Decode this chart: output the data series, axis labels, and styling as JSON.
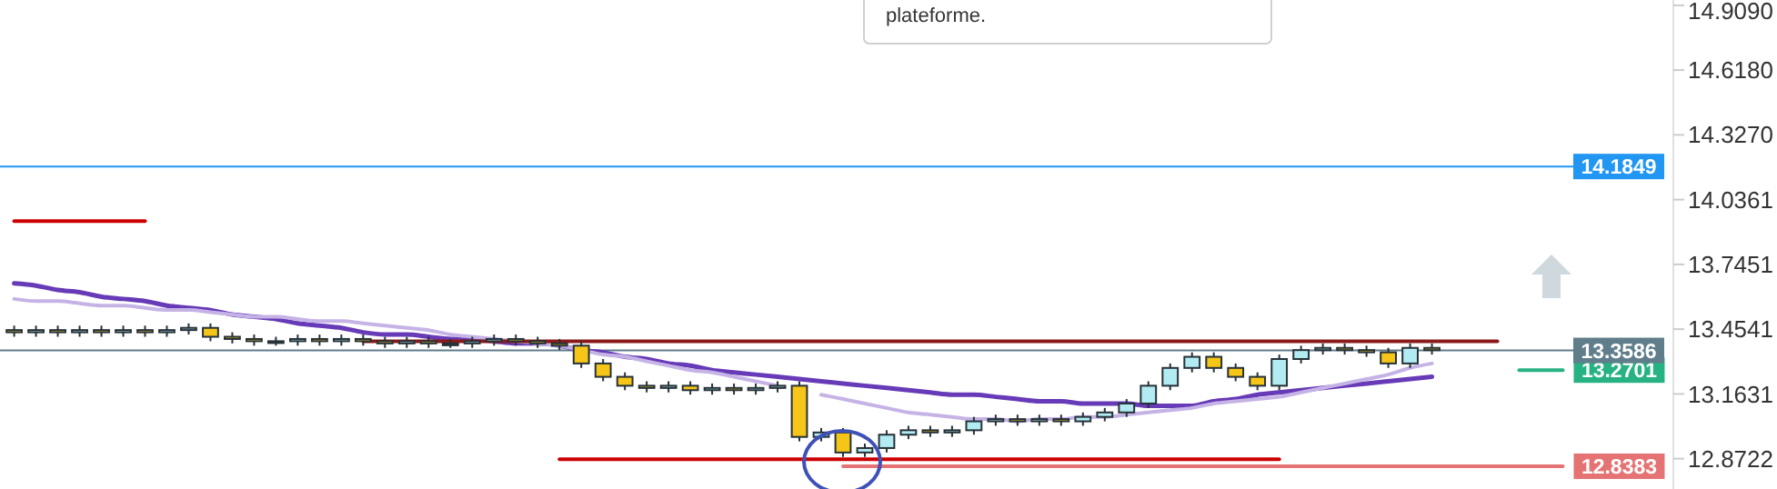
{
  "chart_data": {
    "type": "candlestick",
    "categories": [
      null,
      null,
      null,
      null,
      null,
      null,
      null,
      null,
      null,
      null,
      null,
      null,
      null,
      null,
      null,
      null,
      null,
      null,
      null,
      null,
      null,
      null,
      null,
      null,
      null,
      null,
      null,
      null,
      null,
      null,
      null,
      null,
      null,
      null,
      null,
      null,
      null,
      null,
      null,
      null,
      null,
      null,
      null,
      null,
      null,
      null,
      null,
      null,
      null,
      null,
      null,
      null,
      null,
      null,
      null,
      null,
      null,
      null,
      null,
      null,
      null,
      null,
      null,
      null,
      null,
      null,
      null,
      null,
      null,
      null,
      null,
      null,
      null,
      null,
      null,
      null
    ],
    "ohlc": [
      [
        13.45,
        13.47,
        13.42,
        13.44
      ],
      [
        13.44,
        13.47,
        13.42,
        13.45
      ],
      [
        13.45,
        13.47,
        13.42,
        13.44
      ],
      [
        13.44,
        13.47,
        13.42,
        13.45
      ],
      [
        13.45,
        13.47,
        13.42,
        13.44
      ],
      [
        13.44,
        13.47,
        13.42,
        13.45
      ],
      [
        13.45,
        13.47,
        13.42,
        13.44
      ],
      [
        13.44,
        13.47,
        13.42,
        13.45
      ],
      [
        13.45,
        13.48,
        13.43,
        13.46
      ],
      [
        13.46,
        13.48,
        13.4,
        13.42
      ],
      [
        13.42,
        13.44,
        13.39,
        13.41
      ],
      [
        13.41,
        13.43,
        13.38,
        13.4
      ],
      [
        13.4,
        13.42,
        13.38,
        13.4
      ],
      [
        13.4,
        13.43,
        13.38,
        13.41
      ],
      [
        13.41,
        13.43,
        13.38,
        13.4
      ],
      [
        13.4,
        13.43,
        13.38,
        13.41
      ],
      [
        13.41,
        13.43,
        13.38,
        13.4
      ],
      [
        13.4,
        13.42,
        13.37,
        13.39
      ],
      [
        13.39,
        13.42,
        13.37,
        13.4
      ],
      [
        13.4,
        13.42,
        13.37,
        13.39
      ],
      [
        13.39,
        13.41,
        13.37,
        13.39
      ],
      [
        13.39,
        13.42,
        13.37,
        13.4
      ],
      [
        13.4,
        13.43,
        13.38,
        13.41
      ],
      [
        13.41,
        13.43,
        13.38,
        13.4
      ],
      [
        13.4,
        13.42,
        13.37,
        13.39
      ],
      [
        13.39,
        13.41,
        13.36,
        13.38
      ],
      [
        13.38,
        13.4,
        13.28,
        13.3
      ],
      [
        13.3,
        13.32,
        13.22,
        13.24
      ],
      [
        13.24,
        13.26,
        13.18,
        13.2
      ],
      [
        13.2,
        13.22,
        13.17,
        13.19
      ],
      [
        13.19,
        13.22,
        13.17,
        13.2
      ],
      [
        13.2,
        13.22,
        13.16,
        13.18
      ],
      [
        13.18,
        13.21,
        13.16,
        13.19
      ],
      [
        13.19,
        13.21,
        13.16,
        13.18
      ],
      [
        13.18,
        13.21,
        13.16,
        13.19
      ],
      [
        13.19,
        13.22,
        13.17,
        13.2
      ],
      [
        13.2,
        13.22,
        12.95,
        12.97
      ],
      [
        12.97,
        13.01,
        12.95,
        12.99
      ],
      [
        12.99,
        13.01,
        12.88,
        12.9
      ],
      [
        12.9,
        12.94,
        12.88,
        12.92
      ],
      [
        12.92,
        13.0,
        12.9,
        12.98
      ],
      [
        12.98,
        13.02,
        12.96,
        13.0
      ],
      [
        13.0,
        13.02,
        12.97,
        12.99
      ],
      [
        12.99,
        13.02,
        12.97,
        13.0
      ],
      [
        13.0,
        13.06,
        12.98,
        13.04
      ],
      [
        13.04,
        13.07,
        13.02,
        13.05
      ],
      [
        13.05,
        13.07,
        13.02,
        13.04
      ],
      [
        13.04,
        13.07,
        13.02,
        13.05
      ],
      [
        13.05,
        13.07,
        13.02,
        13.04
      ],
      [
        13.04,
        13.08,
        13.02,
        13.06
      ],
      [
        13.06,
        13.1,
        13.04,
        13.08
      ],
      [
        13.08,
        13.14,
        13.06,
        13.12
      ],
      [
        13.12,
        13.22,
        13.1,
        13.2
      ],
      [
        13.2,
        13.3,
        13.18,
        13.28
      ],
      [
        13.28,
        13.35,
        13.26,
        13.33
      ],
      [
        13.33,
        13.35,
        13.26,
        13.28
      ],
      [
        13.28,
        13.3,
        13.22,
        13.24
      ],
      [
        13.24,
        13.26,
        13.18,
        13.2
      ],
      [
        13.2,
        13.34,
        13.18,
        13.32
      ],
      [
        13.32,
        13.38,
        13.3,
        13.36
      ],
      [
        13.36,
        13.39,
        13.34,
        13.37
      ],
      [
        13.37,
        13.39,
        13.34,
        13.36
      ],
      [
        13.36,
        13.38,
        13.33,
        13.35
      ],
      [
        13.35,
        13.37,
        13.28,
        13.3
      ],
      [
        13.3,
        13.39,
        13.28,
        13.37
      ],
      [
        13.37,
        13.39,
        13.34,
        13.36
      ],
      null,
      null,
      null,
      null,
      null,
      null,
      null,
      null,
      null,
      null
    ],
    "series": [
      {
        "type": "line",
        "color": "#673ab7",
        "values": [
          13.66,
          13.65,
          13.63,
          13.62,
          13.6,
          13.59,
          13.58,
          13.56,
          13.55,
          13.54,
          13.52,
          13.51,
          13.5,
          13.48,
          13.47,
          13.46,
          13.44,
          13.43,
          13.43,
          13.42,
          13.41,
          13.41,
          13.4,
          13.39,
          13.39,
          13.38,
          13.36,
          13.35,
          13.33,
          13.32,
          13.3,
          13.29,
          13.27,
          13.26,
          13.25,
          13.24,
          13.23,
          13.22,
          13.21,
          13.2,
          13.19,
          13.18,
          13.17,
          13.16,
          13.16,
          13.15,
          13.14,
          13.13,
          13.13,
          13.12,
          13.12,
          13.12,
          13.11,
          13.11,
          13.11,
          13.13,
          13.14,
          13.16,
          13.17,
          13.18,
          13.19,
          13.2,
          13.21,
          13.22,
          13.23,
          13.24,
          null,
          null,
          null,
          null,
          null,
          null,
          null,
          null,
          null,
          null
        ]
      },
      {
        "type": "line",
        "color": "#c5b3e6",
        "values": [
          13.59,
          13.58,
          13.58,
          13.57,
          13.56,
          13.56,
          13.55,
          13.54,
          13.54,
          13.53,
          13.52,
          13.51,
          13.51,
          13.5,
          13.49,
          13.49,
          13.48,
          13.47,
          13.46,
          13.45,
          13.43,
          13.42,
          13.41,
          13.4,
          13.39,
          13.38,
          13.36,
          13.34,
          13.33,
          13.31,
          13.29,
          13.27,
          13.26,
          13.24,
          13.22,
          13.2,
          null,
          13.16,
          13.14,
          13.12,
          13.1,
          13.08,
          13.07,
          13.06,
          13.05,
          13.05,
          13.04,
          13.05,
          13.05,
          13.06,
          13.06,
          13.07,
          13.08,
          13.09,
          13.1,
          13.12,
          13.13,
          13.14,
          13.15,
          13.17,
          13.19,
          13.21,
          13.23,
          13.25,
          13.28,
          13.3,
          null,
          null,
          null,
          null,
          null,
          null,
          null,
          null,
          null,
          null
        ]
      },
      {
        "type": "line",
        "color": "#cc0000",
        "values": [
          13.94,
          13.94,
          13.94,
          13.94,
          13.94,
          13.94,
          13.94,
          null,
          null,
          null,
          null,
          null,
          null,
          null,
          null,
          null,
          null,
          null,
          null,
          null,
          null,
          null,
          null,
          null,
          null,
          null,
          null,
          null,
          null,
          null,
          null,
          null,
          null,
          null,
          null,
          null,
          null,
          null,
          null,
          null,
          null,
          null,
          null,
          null,
          null,
          null,
          null,
          null,
          null,
          null,
          null,
          null,
          null,
          null,
          null,
          null,
          null,
          null,
          null,
          null,
          null,
          null,
          null,
          null,
          null,
          null,
          null,
          null,
          null,
          null,
          null,
          null,
          null,
          null,
          null,
          null
        ]
      },
      {
        "type": "line",
        "color": "#8b1a1a",
        "values": [
          null,
          null,
          null,
          null,
          null,
          null,
          null,
          null,
          null,
          null,
          null,
          null,
          null,
          null,
          null,
          null,
          13.4,
          13.4,
          13.4,
          13.4,
          13.4,
          13.4,
          13.4,
          13.4,
          13.4,
          13.4,
          13.4,
          13.4,
          13.4,
          13.4,
          13.4,
          13.4,
          13.4,
          13.4,
          13.4,
          13.4,
          13.4,
          13.4,
          13.4,
          13.4,
          13.4,
          13.4,
          13.4,
          13.4,
          13.4,
          13.4,
          13.4,
          13.4,
          13.4,
          13.4,
          13.4,
          13.4,
          13.4,
          13.4,
          13.4,
          13.4,
          13.4,
          13.4,
          13.4,
          13.4,
          13.4,
          13.4,
          13.4,
          13.4,
          13.4,
          13.4,
          13.4,
          13.4,
          13.4,
          null,
          null,
          null,
          null,
          null,
          null,
          null
        ]
      },
      {
        "type": "line",
        "color": "#cc0000",
        "values": [
          null,
          null,
          null,
          null,
          null,
          null,
          null,
          null,
          null,
          null,
          null,
          null,
          null,
          null,
          null,
          null,
          null,
          null,
          null,
          null,
          null,
          null,
          null,
          null,
          null,
          12.87,
          12.87,
          12.87,
          12.87,
          12.87,
          12.87,
          12.87,
          12.87,
          12.87,
          12.87,
          12.87,
          12.87,
          12.87,
          12.87,
          12.87,
          12.87,
          12.87,
          12.87,
          12.87,
          12.87,
          12.87,
          12.87,
          12.87,
          12.87,
          12.87,
          12.87,
          12.87,
          12.87,
          12.87,
          12.87,
          12.87,
          12.87,
          12.87,
          12.87,
          null,
          null,
          null,
          null,
          null,
          null,
          null,
          null,
          null,
          null,
          null,
          null,
          null,
          null,
          null,
          null,
          null
        ]
      },
      {
        "type": "line",
        "color": "#26b283",
        "values": [
          null,
          null,
          null,
          null,
          null,
          null,
          null,
          null,
          null,
          null,
          null,
          null,
          null,
          null,
          null,
          null,
          null,
          null,
          null,
          null,
          null,
          null,
          null,
          null,
          null,
          null,
          null,
          null,
          null,
          null,
          null,
          null,
          null,
          null,
          null,
          null,
          null,
          null,
          null,
          null,
          null,
          null,
          null,
          null,
          null,
          null,
          null,
          null,
          null,
          null,
          null,
          null,
          null,
          null,
          null,
          null,
          null,
          null,
          null,
          null,
          null,
          null,
          null,
          null,
          null,
          null,
          null,
          null,
          null,
          13.2701,
          13.2701,
          13.2701,
          null,
          null,
          null,
          null
        ],
        "value_labels": [
          null,
          null,
          null,
          null,
          null,
          null,
          null,
          null,
          null,
          null,
          null,
          null,
          null,
          null,
          null,
          null,
          null,
          null,
          null,
          null,
          null,
          null,
          null,
          null,
          null,
          null,
          null,
          null,
          null,
          null,
          null,
          null,
          null,
          null,
          null,
          null,
          null,
          null,
          null,
          null,
          null,
          null,
          null,
          null,
          null,
          null,
          null,
          null,
          null,
          null,
          null,
          null,
          null,
          null,
          null,
          null,
          null,
          null,
          null,
          null,
          null,
          null,
          null,
          null,
          null,
          null,
          null,
          null,
          null,
          null,
          null,
          "13.2701",
          null,
          null,
          null,
          null
        ]
      },
      {
        "type": "line",
        "color": "#e57373",
        "values": [
          null,
          null,
          null,
          null,
          null,
          null,
          null,
          null,
          null,
          null,
          null,
          null,
          null,
          null,
          null,
          null,
          null,
          null,
          null,
          null,
          null,
          null,
          null,
          null,
          null,
          null,
          null,
          null,
          null,
          null,
          null,
          null,
          null,
          null,
          null,
          null,
          null,
          null,
          12.8383,
          12.8383,
          12.8383,
          12.8383,
          12.8383,
          12.8383,
          12.8383,
          12.8383,
          12.8383,
          12.8383,
          12.8383,
          12.8383,
          12.8383,
          12.8383,
          12.8383,
          12.8383,
          12.8383,
          12.8383,
          12.8383,
          12.8383,
          12.8383,
          12.8383,
          12.8383,
          12.8383,
          12.8383,
          12.8383,
          12.8383,
          12.8383,
          12.8383,
          12.8383,
          12.8383,
          12.8383,
          12.8383,
          12.8383,
          null,
          null,
          null,
          null
        ],
        "value_labels": [
          null,
          null,
          null,
          null,
          null,
          null,
          null,
          null,
          null,
          null,
          null,
          null,
          null,
          null,
          null,
          null,
          null,
          null,
          null,
          null,
          null,
          null,
          null,
          null,
          null,
          null,
          null,
          null,
          null,
          null,
          null,
          null,
          null,
          null,
          null,
          null,
          null,
          null,
          null,
          null,
          null,
          null,
          null,
          null,
          null,
          null,
          null,
          null,
          null,
          null,
          null,
          null,
          null,
          null,
          null,
          null,
          null,
          null,
          null,
          null,
          null,
          null,
          null,
          null,
          null,
          null,
          null,
          null,
          null,
          null,
          null,
          "12.8383",
          null,
          null,
          null,
          null
        ]
      }
    ],
    "ylim": [
      12.736,
      14.933
    ],
    "yticks": [
      12.8722,
      13.1631,
      13.4541,
      13.7451,
      14.0361,
      {
        "value": 14.327,
        "label": "14.3270"
      },
      {
        "value": 14.618,
        "label": "14.6180"
      },
      {
        "value": 14.909,
        "label": "14.9090"
      }
    ],
    "tick_labels": "y",
    "ref_lines": [
      {
        "axis": "y",
        "value": 14.1849,
        "label": "14.1849",
        "color": "#2196f3"
      },
      {
        "axis": "y",
        "value": 13.3586,
        "label": "13.3586",
        "color": "#607d8b"
      }
    ],
    "annotations": [
      "plateforme."
    ]
  }
}
